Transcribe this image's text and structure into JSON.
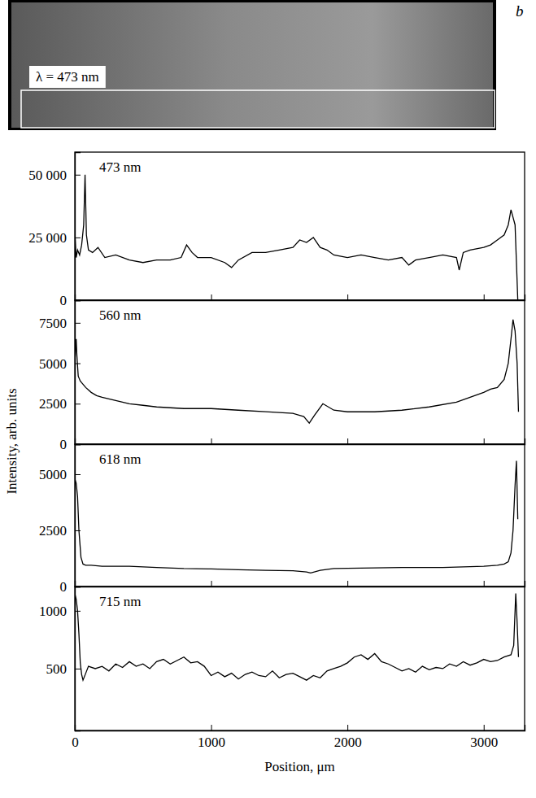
{
  "image": {
    "panel_label": "b",
    "label": "λ = 473 nm"
  },
  "ylabel": "Intensity, arb. units",
  "chart_data": [
    {
      "type": "line",
      "title": "473 nm",
      "color": "#000000",
      "tick_labels": "y",
      "xlim": [
        0,
        3300
      ],
      "xticks": [
        0,
        1000,
        2000,
        3000
      ],
      "ylim": [
        0,
        59000
      ],
      "yticks": [
        0,
        {
          "value": 25000,
          "label": "25 000"
        },
        {
          "value": 50000,
          "label": "50 000"
        }
      ],
      "x": [
        0,
        10,
        20,
        35,
        50,
        65,
        75,
        85,
        100,
        130,
        170,
        220,
        300,
        400,
        500,
        600,
        700,
        780,
        820,
        860,
        900,
        1000,
        1100,
        1150,
        1200,
        1300,
        1400,
        1500,
        1600,
        1650,
        1700,
        1750,
        1800,
        1850,
        1900,
        2000,
        2100,
        2200,
        2300,
        2400,
        2450,
        2500,
        2600,
        2700,
        2800,
        2820,
        2850,
        2900,
        3000,
        3050,
        3100,
        3150,
        3180,
        3200,
        3215,
        3230,
        3240,
        3250
      ],
      "values": [
        27000,
        17000,
        20000,
        18000,
        22000,
        30000,
        50000,
        26000,
        20000,
        19000,
        21000,
        17000,
        18000,
        16000,
        15000,
        16000,
        16000,
        17000,
        22000,
        19000,
        17000,
        17000,
        15000,
        13000,
        16000,
        19000,
        19000,
        20000,
        21000,
        24000,
        23000,
        25000,
        21000,
        20000,
        18000,
        17000,
        18000,
        17000,
        16000,
        17000,
        14000,
        16000,
        17000,
        18000,
        17000,
        12000,
        19000,
        20000,
        21000,
        22000,
        24000,
        26000,
        30000,
        36000,
        33000,
        30000,
        15000,
        0
      ]
    },
    {
      "type": "line",
      "title": "560 nm",
      "color": "#000000",
      "tick_labels": "y",
      "xlim": [
        0,
        3300
      ],
      "xticks": [
        0,
        1000,
        2000,
        3000
      ],
      "ylim": [
        0,
        8900
      ],
      "yticks": [
        0,
        2500,
        5000,
        7500
      ],
      "x": [
        0,
        10,
        15,
        25,
        40,
        60,
        80,
        120,
        160,
        200,
        300,
        400,
        500,
        600,
        800,
        1000,
        1200,
        1400,
        1600,
        1680,
        1720,
        1760,
        1820,
        1900,
        2000,
        2200,
        2400,
        2600,
        2800,
        2900,
        3000,
        3050,
        3100,
        3150,
        3180,
        3200,
        3215,
        3230,
        3245,
        3255
      ],
      "values": [
        5000,
        6500,
        5500,
        4200,
        3900,
        3700,
        3500,
        3200,
        3000,
        2900,
        2700,
        2500,
        2400,
        2300,
        2200,
        2200,
        2100,
        2000,
        1900,
        1700,
        1300,
        1800,
        2500,
        2100,
        2000,
        2000,
        2100,
        2300,
        2600,
        2900,
        3200,
        3400,
        3500,
        4000,
        5000,
        6500,
        7700,
        7000,
        5000,
        2000
      ]
    },
    {
      "type": "line",
      "title": "618 nm",
      "color": "#000000",
      "tick_labels": "y",
      "xlim": [
        0,
        3300
      ],
      "xticks": [
        0,
        1000,
        2000,
        3000
      ],
      "ylim": [
        0,
        6340
      ],
      "yticks": [
        0,
        2500,
        5000
      ],
      "x": [
        0,
        10,
        20,
        30,
        45,
        60,
        80,
        120,
        200,
        400,
        600,
        800,
        1000,
        1200,
        1400,
        1600,
        1700,
        1730,
        1800,
        1900,
        2100,
        2400,
        2700,
        3000,
        3100,
        3150,
        3180,
        3200,
        3215,
        3230,
        3240,
        3250
      ],
      "values": [
        4800,
        4600,
        4000,
        2500,
        1300,
        1000,
        950,
        950,
        900,
        900,
        850,
        800,
        780,
        750,
        720,
        700,
        650,
        600,
        720,
        800,
        820,
        850,
        850,
        900,
        950,
        1000,
        1100,
        1500,
        2500,
        4500,
        5600,
        3000
      ]
    },
    {
      "type": "line",
      "title": "715 nm",
      "color": "#000000",
      "xlabel": "Position, μm",
      "xlim": [
        0,
        3300
      ],
      "xticks": [
        0,
        1000,
        2000,
        3000
      ],
      "ylim": [
        -35,
        1210
      ],
      "yticks": [
        500,
        1000
      ],
      "x": [
        0,
        10,
        20,
        30,
        40,
        50,
        60,
        80,
        100,
        150,
        200,
        250,
        300,
        350,
        400,
        450,
        500,
        550,
        600,
        650,
        700,
        750,
        800,
        850,
        900,
        950,
        1000,
        1050,
        1100,
        1150,
        1200,
        1250,
        1300,
        1350,
        1400,
        1450,
        1500,
        1550,
        1600,
        1650,
        1700,
        1750,
        1800,
        1850,
        1900,
        1950,
        2000,
        2050,
        2100,
        2150,
        2200,
        2250,
        2300,
        2350,
        2400,
        2450,
        2500,
        2550,
        2600,
        2650,
        2700,
        2750,
        2800,
        2850,
        2900,
        2950,
        3000,
        3050,
        3100,
        3150,
        3200,
        3220,
        3235,
        3245,
        3255
      ],
      "values": [
        1150,
        1100,
        1000,
        800,
        550,
        450,
        400,
        460,
        520,
        500,
        520,
        480,
        540,
        510,
        560,
        520,
        540,
        500,
        560,
        580,
        540,
        570,
        600,
        550,
        560,
        520,
        440,
        470,
        430,
        460,
        410,
        450,
        470,
        440,
        430,
        480,
        420,
        450,
        460,
        430,
        400,
        440,
        420,
        480,
        500,
        520,
        550,
        600,
        620,
        580,
        630,
        560,
        540,
        510,
        480,
        500,
        470,
        520,
        490,
        510,
        500,
        540,
        520,
        560,
        530,
        550,
        580,
        560,
        570,
        600,
        620,
        700,
        1150,
        900,
        600
      ]
    }
  ]
}
